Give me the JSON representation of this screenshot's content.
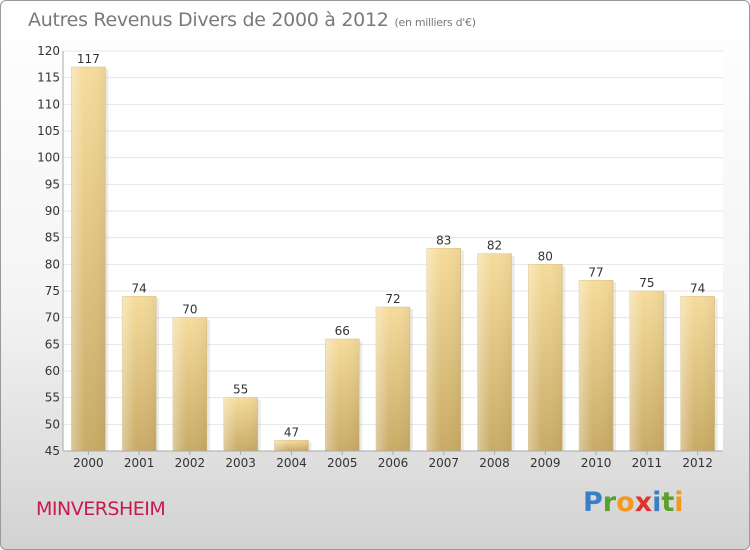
{
  "header": {
    "title": "Autres Revenus Divers de 2000 à 2012",
    "subtitle": "(en milliers d'€)"
  },
  "footer": {
    "place": "MINVERSHEIM",
    "logo_letters": [
      "P",
      "r",
      "o",
      "x",
      "i",
      "t",
      "i"
    ],
    "logo_colors": [
      "#3a7fc4",
      "#5aa02c",
      "#f39a1e",
      "#e0322b",
      "#3a7fc4",
      "#5aa02c",
      "#f39a1e"
    ]
  },
  "chart_data": {
    "type": "bar",
    "categories": [
      "2000",
      "2001",
      "2002",
      "2003",
      "2004",
      "2005",
      "2006",
      "2007",
      "2008",
      "2009",
      "2010",
      "2011",
      "2012"
    ],
    "values": [
      117,
      74,
      70,
      55,
      47,
      66,
      72,
      83,
      82,
      80,
      77,
      75,
      74
    ],
    "ylim": [
      45,
      120
    ],
    "yticks": [
      45,
      50,
      55,
      60,
      65,
      70,
      75,
      80,
      85,
      90,
      95,
      100,
      105,
      110,
      115,
      120
    ],
    "grid": true,
    "colors": {
      "bar_light": "#f6dc9c",
      "bar_dark": "#c9ab66",
      "grid": "#e6e6e6",
      "axis": "#aaaaaa"
    }
  }
}
